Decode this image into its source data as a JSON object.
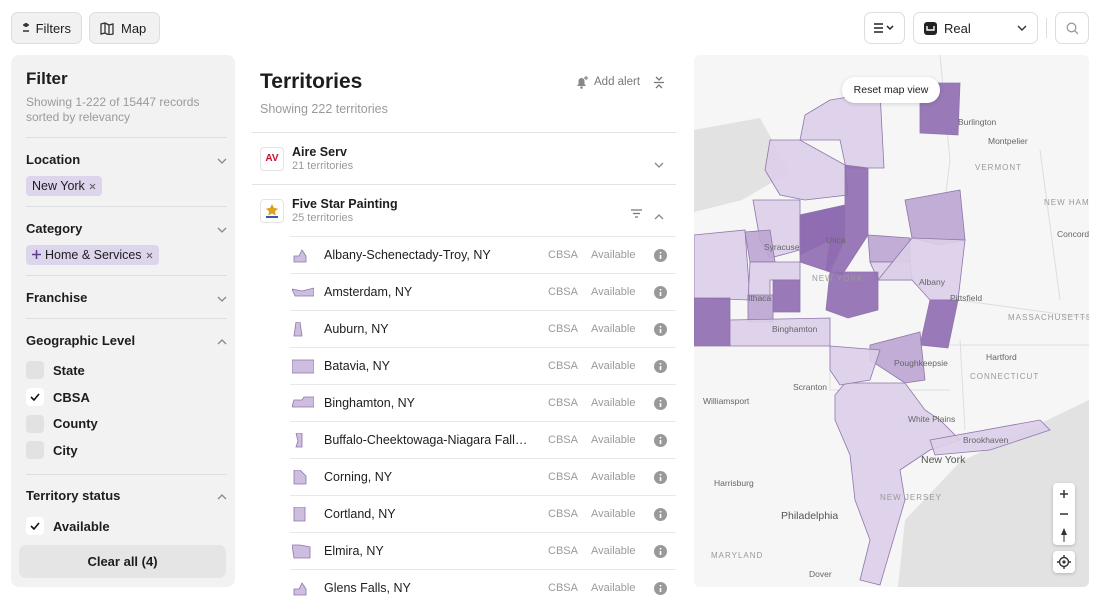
{
  "toolbar": {
    "filters": "Filters",
    "map": "Map",
    "mode": "Real"
  },
  "filter": {
    "title": "Filter",
    "records": "Showing 1-222 of 15447 records",
    "sort": "sorted by relevancy",
    "sections": [
      {
        "label": "Location",
        "open": true,
        "chips": [
          "New York"
        ]
      },
      {
        "label": "Category",
        "open": true,
        "chips": [
          "Home & Services"
        ]
      },
      {
        "label": "Franchise",
        "open": false
      },
      {
        "label": "Geographic Level",
        "open": true,
        "options": [
          {
            "label": "State",
            "checked": false
          },
          {
            "label": "CBSA",
            "checked": true
          },
          {
            "label": "County",
            "checked": false
          },
          {
            "label": "City",
            "checked": false
          }
        ]
      },
      {
        "label": "Territory status",
        "open": true,
        "options": [
          {
            "label": "Available",
            "checked": true
          }
        ]
      }
    ],
    "clear": "Clear all (4)"
  },
  "territories": {
    "title": "Territories",
    "subtitle": "Showing 222 territories",
    "add_alert": "Add alert",
    "franchises": [
      {
        "logo": "AV",
        "name": "Aire Serv",
        "count": "21 territories",
        "open": false
      },
      {
        "name": "Five Star Painting",
        "count": "25 territories",
        "open": true,
        "items": [
          {
            "name": "Albany-Schenectady-Troy, NY",
            "type": "CBSA",
            "status": "Available"
          },
          {
            "name": "Amsterdam, NY",
            "type": "CBSA",
            "status": "Available"
          },
          {
            "name": "Auburn, NY",
            "type": "CBSA",
            "status": "Available"
          },
          {
            "name": "Batavia, NY",
            "type": "CBSA",
            "status": "Available"
          },
          {
            "name": "Binghamton, NY",
            "type": "CBSA",
            "status": "Available"
          },
          {
            "name": "Buffalo-Cheektowaga-Niagara Falls, NY",
            "type": "CBSA",
            "status": "Available"
          },
          {
            "name": "Corning, NY",
            "type": "CBSA",
            "status": "Available"
          },
          {
            "name": "Cortland, NY",
            "type": "CBSA",
            "status": "Available"
          },
          {
            "name": "Elmira, NY",
            "type": "CBSA",
            "status": "Available"
          },
          {
            "name": "Glens Falls, NY",
            "type": "CBSA",
            "status": "Available"
          }
        ]
      }
    ]
  },
  "map": {
    "reset": "Reset map view",
    "labels": [
      "Burlington",
      "Montpelier",
      "VERMONT",
      "NEW HAMPSHIRE",
      "Concord",
      "Syracuse",
      "Utica",
      "NEW YORK",
      "Ithaca",
      "Binghamton",
      "Albany",
      "Pittsfield",
      "MASSACHUSETTS",
      "Hartford",
      "CONNECTICUT",
      "Poughkeepsie",
      "Scranton",
      "Williamsport",
      "White Plains",
      "Brookhaven",
      "New York",
      "Harrisburg",
      "NEW JERSEY",
      "Philadelphia",
      "MARYLAND",
      "Dover"
    ]
  }
}
